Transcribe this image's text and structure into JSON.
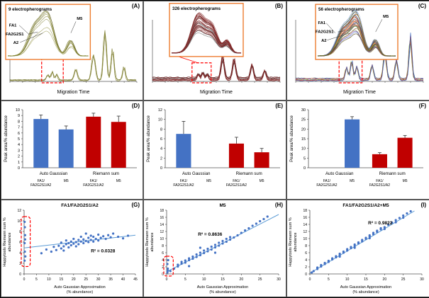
{
  "figure": {
    "background": "#ffffff",
    "accent_orange": "#ED7D31",
    "accent_red": "#FF0000",
    "bar_blue": "#4472C4",
    "bar_red": "#C00000",
    "trend_blue": "#5B9BD5"
  },
  "chart_data": [
    {
      "panel": "(A)",
      "type": "line",
      "subtype": "electropherogram",
      "title": "9 electropherograms",
      "xlabel": "Migration Time",
      "n_traces": 9,
      "n_main": 3,
      "seed": 7,
      "colors": [
        "#7f7f33",
        "#8f8f40",
        "#6b6b26",
        "#9a9a52",
        "#75752d",
        "#5e5e20",
        "#a3a35e",
        "#82823a",
        "#8a8a30"
      ],
      "main_peaks": [
        {
          "c": 0.3,
          "h": 0.1,
          "w": 0.01
        },
        {
          "c": 0.335,
          "h": 0.16,
          "w": 0.009
        },
        {
          "c": 0.37,
          "h": 0.11,
          "w": 0.009
        },
        {
          "c": 0.52,
          "h": 0.2,
          "w": 0.012
        },
        {
          "c": 0.66,
          "h": 0.45,
          "w": 0.014
        },
        {
          "c": 0.75,
          "h": 0.88,
          "w": 0.012
        },
        {
          "c": 0.81,
          "h": 0.55,
          "w": 0.011
        },
        {
          "c": 0.9,
          "h": 0.24,
          "w": 0.01
        }
      ],
      "inset_peaks": [
        {
          "c": 0.34,
          "h": 0.72,
          "w": 0.085
        },
        {
          "c": 0.5,
          "h": 0.95,
          "w": 0.075
        },
        {
          "c": 0.78,
          "h": 0.38,
          "w": 0.045
        }
      ],
      "inset_pos": {
        "x": 0.03,
        "y": 0.03,
        "w": 0.6,
        "h": 0.56
      },
      "highlight": {
        "x0": 0.25,
        "x1": 0.42,
        "h": 0.28
      },
      "connector": 0,
      "annotations": [
        {
          "text": "FA1",
          "x": 0.04,
          "y": 0.4,
          "leader": [
            0.16,
            0.38,
            0.28,
            0.55
          ]
        },
        {
          "text": "FA2G2S1",
          "x": 0.0,
          "y": 0.56,
          "leader": [
            0.27,
            0.54,
            0.38,
            0.5
          ]
        },
        {
          "text": "A2",
          "x": 0.09,
          "y": 0.72,
          "leader": [
            0.17,
            0.69,
            0.44,
            0.52
          ]
        },
        {
          "text": "M5",
          "x": 0.84,
          "y": 0.28,
          "leader": [
            0.83,
            0.31,
            0.77,
            0.52
          ]
        }
      ]
    },
    {
      "panel": "(B)",
      "type": "line",
      "subtype": "electropherogram",
      "title": "326 electropherograms",
      "xlabel": "Migration Time",
      "n_traces": 326,
      "n_main": 8,
      "seed": 13,
      "colors": [
        "#7b2222",
        "#8d2e2e",
        "#652020",
        "#9a3d3d",
        "#712525",
        "#565656",
        "#843030",
        "#5f1d1d",
        "#952f2f",
        "#6e6e6e"
      ],
      "main_peaks": [
        {
          "c": 0.36,
          "h": 0.1,
          "w": 0.009
        },
        {
          "c": 0.395,
          "h": 0.14,
          "w": 0.009
        },
        {
          "c": 0.43,
          "h": 0.1,
          "w": 0.009
        },
        {
          "c": 0.55,
          "h": 0.45,
          "w": 0.012
        },
        {
          "c": 0.64,
          "h": 0.4,
          "w": 0.012
        },
        {
          "c": 0.78,
          "h": 0.3,
          "w": 0.011
        },
        {
          "c": 0.88,
          "h": 0.18,
          "w": 0.01
        }
      ],
      "inset_peaks": [
        {
          "c": 0.38,
          "h": 0.88,
          "w": 0.095
        },
        {
          "c": 0.58,
          "h": 0.6,
          "w": 0.085
        },
        {
          "c": 0.8,
          "h": 0.28,
          "w": 0.05
        }
      ],
      "inset_pos": {
        "x": 0.18,
        "y": 0.02,
        "w": 0.52,
        "h": 0.54
      },
      "highlight": {
        "x0": 0.31,
        "x1": 0.46,
        "h": 0.22
      },
      "connector": 1,
      "annotations": []
    },
    {
      "panel": "(C)",
      "type": "line",
      "subtype": "electropherogram",
      "title": "56 electropherograms",
      "xlabel": "Migration Time",
      "n_traces": 56,
      "n_main": 6,
      "seed": 29,
      "colors": [
        "#4472C4",
        "#C00000",
        "#70AD47",
        "#7030A0",
        "#ED7D31",
        "#255E91",
        "#9E480E",
        "#636363",
        "#997300",
        "#43682B",
        "#698ED0",
        "#F1975A"
      ],
      "main_peaks": [
        {
          "c": 0.4,
          "h": 0.24,
          "w": 0.01
        },
        {
          "c": 0.44,
          "h": 0.36,
          "w": 0.01
        },
        {
          "c": 0.48,
          "h": 0.26,
          "w": 0.01
        },
        {
          "c": 0.6,
          "h": 0.28,
          "w": 0.011
        },
        {
          "c": 0.7,
          "h": 0.52,
          "w": 0.012
        },
        {
          "c": 0.79,
          "h": 0.38,
          "w": 0.011
        },
        {
          "c": 0.9,
          "h": 0.82,
          "w": 0.011
        }
      ],
      "inset_peaks": [
        {
          "c": 0.33,
          "h": 0.62,
          "w": 0.085
        },
        {
          "c": 0.5,
          "h": 0.9,
          "w": 0.075
        },
        {
          "c": 0.74,
          "h": 0.36,
          "w": 0.045
        }
      ],
      "inset_pos": {
        "x": 0.2,
        "y": 0.03,
        "w": 0.58,
        "h": 0.56
      },
      "highlight": {
        "x0": 0.34,
        "x1": 0.52,
        "h": 0.3
      },
      "connector": 2,
      "annotations": [
        {
          "text": "FA1",
          "x": 0.03,
          "y": 0.36,
          "leader": [
            0.13,
            0.34,
            0.24,
            0.52
          ]
        },
        {
          "text": "FA2G2S1",
          "x": 0.0,
          "y": 0.52,
          "leader": [
            0.27,
            0.5,
            0.36,
            0.48
          ]
        },
        {
          "text": "A2",
          "x": 0.07,
          "y": 0.68,
          "leader": [
            0.14,
            0.65,
            0.42,
            0.52
          ]
        },
        {
          "text": "M5",
          "x": 0.82,
          "y": 0.24,
          "leader": [
            0.81,
            0.27,
            0.73,
            0.5
          ]
        }
      ]
    },
    {
      "panel": "(D)",
      "type": "bar",
      "ylabel": "Peak area/% abundance",
      "ylim": [
        0,
        10
      ],
      "ytick_step": 1,
      "groups": [
        "Auto Gaussian",
        "Riemann sum"
      ],
      "categories": [
        [
          "FA1/",
          "FA2G2S1/A2"
        ],
        [
          "M5"
        ],
        [
          "FA1/",
          "FA2G2S1/A2"
        ],
        [
          "M5"
        ]
      ],
      "values": [
        8.4,
        6.6,
        8.8,
        7.9
      ],
      "errors": [
        0.7,
        0.6,
        0.6,
        1.0
      ],
      "bar_colors": [
        "#4472C4",
        "#4472C4",
        "#C00000",
        "#C00000"
      ]
    },
    {
      "panel": "(E)",
      "type": "bar",
      "ylabel": "Peak area/% abundance",
      "ylim": [
        0,
        12
      ],
      "ytick_step": 2,
      "groups": [
        "Auto Gaussian",
        "Riemann sum"
      ],
      "categories": [
        [
          "FA1/",
          "FA2G2S1/A2"
        ],
        [
          "M5"
        ],
        [
          "FA1/",
          "FA2G2S1/A2"
        ],
        [
          "M5"
        ]
      ],
      "values": [
        7.0,
        0,
        5.0,
        3.2
      ],
      "errors": [
        2.6,
        0,
        1.3,
        0.8
      ],
      "bar_colors": [
        "#4472C4",
        "#4472C4",
        "#C00000",
        "#C00000"
      ]
    },
    {
      "panel": "(F)",
      "type": "bar",
      "ylabel": "Peak area/% abundance",
      "ylim": [
        0,
        30
      ],
      "ytick_step": 5,
      "groups": [
        "Auto Gaussian",
        "Riemann sum"
      ],
      "categories": [
        [
          "FA1/",
          "FA2G2S1/A2"
        ],
        [
          "M5"
        ],
        [
          "FA1/",
          "FA2G2S1/A2"
        ],
        [
          "M5"
        ]
      ],
      "values": [
        0,
        25,
        7,
        15.5
      ],
      "errors": [
        0,
        1.4,
        0.8,
        1.2
      ],
      "bar_colors": [
        "#4472C4",
        "#4472C4",
        "#C00000",
        "#C00000"
      ]
    },
    {
      "panel": "(G)",
      "type": "scatter",
      "title": "FA1/FA2G2S1/A2",
      "r2": "R² = 0.0328",
      "r2_pos": [
        0.6,
        0.66
      ],
      "xlabel_lines": [
        "Auto Gaussian Approximation",
        "(% abundance)"
      ],
      "ylabel_lines": [
        "Happytools Riemann sum %",
        "abundance"
      ],
      "xlim": [
        0,
        45
      ],
      "xtick_step": 5,
      "ylim": [
        0,
        12
      ],
      "ytick_step": 2,
      "trend": [
        [
          0,
          4.9
        ],
        [
          45,
          7.3
        ]
      ],
      "highlight_box": {
        "x0": 0,
        "x1": 1.6,
        "y0": 1.8,
        "y1": 10.4
      },
      "points": [
        [
          0.2,
          2.5
        ],
        [
          0.3,
          4.2
        ],
        [
          0.2,
          5.8
        ],
        [
          0.4,
          7.3
        ],
        [
          0.3,
          8.8
        ],
        [
          0.2,
          9.8
        ],
        [
          0.5,
          3.3
        ],
        [
          0.4,
          6.5
        ],
        [
          7,
          3.9
        ],
        [
          9,
          4.6
        ],
        [
          11,
          4.2
        ],
        [
          12,
          5.1
        ],
        [
          13,
          4.5
        ],
        [
          14,
          5.3
        ],
        [
          15,
          4.8
        ],
        [
          15,
          5.9
        ],
        [
          16,
          5.2
        ],
        [
          16,
          4.4
        ],
        [
          17,
          5.6
        ],
        [
          17,
          6.3
        ],
        [
          18,
          5.0
        ],
        [
          18,
          5.8
        ],
        [
          19,
          5.4
        ],
        [
          19,
          6.1
        ],
        [
          20,
          5.7
        ],
        [
          20,
          6.6
        ],
        [
          21,
          5.2
        ],
        [
          21,
          6.0
        ],
        [
          22,
          6.4
        ],
        [
          22,
          5.6
        ],
        [
          23,
          6.1
        ],
        [
          23,
          7.0
        ],
        [
          24,
          5.8
        ],
        [
          24,
          6.5
        ],
        [
          25,
          6.2
        ],
        [
          25,
          7.6
        ],
        [
          26,
          6.0
        ],
        [
          26,
          6.8
        ],
        [
          27,
          6.4
        ],
        [
          27,
          7.2
        ],
        [
          28,
          6.1
        ],
        [
          28,
          7.0
        ],
        [
          29,
          6.6
        ],
        [
          30,
          6.3
        ],
        [
          30,
          7.4
        ],
        [
          31,
          6.8
        ],
        [
          32,
          7.1
        ],
        [
          33,
          6.6
        ],
        [
          34,
          7.3
        ],
        [
          35,
          6.9
        ],
        [
          36,
          7.6
        ],
        [
          38,
          7.0
        ],
        [
          40,
          6.7
        ],
        [
          42,
          7.2
        ]
      ]
    },
    {
      "panel": "(H)",
      "type": "scatter",
      "title": "M5",
      "r2": "R² = 0.8636",
      "r2_pos": [
        0.28,
        0.4
      ],
      "xlabel_lines": [
        "Auto Gaussian Approximation",
        "(% abundance)"
      ],
      "ylabel_lines": [
        "Happytools Riemann sum %",
        "abundance"
      ],
      "xlim": [
        0,
        30
      ],
      "xtick_step": 5,
      "ylim": [
        0,
        18
      ],
      "ytick_step": 2,
      "trend": [
        [
          0,
          0.6
        ],
        [
          30,
          16.8
        ]
      ],
      "highlight_box": {
        "x0": 0,
        "x1": 1.2,
        "y0": 0,
        "y1": 4.4
      },
      "points": [
        [
          0.2,
          0.4
        ],
        [
          0.3,
          1.5
        ],
        [
          0.2,
          2.8
        ],
        [
          0.4,
          3.9
        ],
        [
          0.3,
          0.9
        ],
        [
          1,
          0.8
        ],
        [
          2,
          1.5
        ],
        [
          3,
          2.1
        ],
        [
          3,
          2.6
        ],
        [
          4,
          2.9
        ],
        [
          4,
          3.4
        ],
        [
          5,
          3.2
        ],
        [
          5,
          3.8
        ],
        [
          6,
          3.9
        ],
        [
          6,
          4.4
        ],
        [
          6,
          2.2
        ],
        [
          7,
          4.3
        ],
        [
          7,
          4.9
        ],
        [
          8,
          4.8
        ],
        [
          8,
          5.5
        ],
        [
          9,
          5.3
        ],
        [
          9,
          6.0
        ],
        [
          9,
          7.4
        ],
        [
          10,
          5.9
        ],
        [
          10,
          6.6
        ],
        [
          11,
          6.4
        ],
        [
          11,
          7.1
        ],
        [
          12,
          6.9
        ],
        [
          12,
          7.7
        ],
        [
          13,
          7.5
        ],
        [
          13,
          8.2
        ],
        [
          13,
          6.0
        ],
        [
          14,
          8.0
        ],
        [
          14,
          8.8
        ],
        [
          15,
          8.6
        ],
        [
          15,
          9.3
        ],
        [
          16,
          9.1
        ],
        [
          16,
          9.9
        ],
        [
          17,
          9.7
        ],
        [
          17,
          10.4
        ],
        [
          18,
          10.3
        ],
        [
          19,
          10.9
        ],
        [
          20,
          11.6
        ],
        [
          21,
          12.3
        ],
        [
          22,
          12.9
        ],
        [
          23,
          13.6
        ],
        [
          24,
          14.2
        ],
        [
          25,
          14.9
        ],
        [
          26,
          15.5
        ],
        [
          27,
          16.2
        ]
      ]
    },
    {
      "panel": "(I)",
      "type": "scatter",
      "title": "FA1/FA2G2S1/A2+M5",
      "r2": "R² = 0.9822",
      "r2_pos": [
        0.52,
        0.22
      ],
      "xlabel_lines": [
        "Auto Gaussian Approximation",
        "(% abundance)"
      ],
      "ylabel_lines": [
        "Happytools Riemann sum %",
        "abundance"
      ],
      "xlim": [
        0,
        30
      ],
      "xtick_step": 5,
      "ylim": [
        0,
        18
      ],
      "ytick_step": 2,
      "trend": [
        [
          0,
          0.2
        ],
        [
          28,
          17.8
        ]
      ],
      "highlight_box": null,
      "points": [
        [
          0.5,
          0.4
        ],
        [
          1,
          0.8
        ],
        [
          2,
          1.4
        ],
        [
          2,
          1.8
        ],
        [
          3,
          2.1
        ],
        [
          3,
          2.5
        ],
        [
          4,
          2.8
        ],
        [
          4,
          3.1
        ],
        [
          5,
          3.4
        ],
        [
          5,
          3.7
        ],
        [
          6,
          4.1
        ],
        [
          6,
          4.4
        ],
        [
          7,
          4.7
        ],
        [
          7,
          5.0
        ],
        [
          8,
          5.3
        ],
        [
          8,
          5.7
        ],
        [
          8,
          4.9
        ],
        [
          9,
          6.0
        ],
        [
          9,
          6.3
        ],
        [
          10,
          6.6
        ],
        [
          10,
          7.0
        ],
        [
          11,
          7.3
        ],
        [
          11,
          7.6
        ],
        [
          12,
          7.9
        ],
        [
          12,
          8.3
        ],
        [
          12,
          7.4
        ],
        [
          13,
          8.6
        ],
        [
          13,
          8.9
        ],
        [
          14,
          9.2
        ],
        [
          14,
          9.6
        ],
        [
          15,
          9.9
        ],
        [
          15,
          10.2
        ],
        [
          16,
          10.6
        ],
        [
          16,
          10.9
        ],
        [
          16,
          10.1
        ],
        [
          17,
          11.2
        ],
        [
          17,
          11.6
        ],
        [
          18,
          11.9
        ],
        [
          18,
          12.2
        ],
        [
          19,
          12.6
        ],
        [
          19,
          12.9
        ],
        [
          20,
          13.2
        ],
        [
          20,
          12.7
        ],
        [
          21,
          13.9
        ],
        [
          22,
          14.5
        ],
        [
          23,
          15.2
        ],
        [
          23,
          14.6
        ],
        [
          24,
          15.8
        ],
        [
          25,
          16.5
        ],
        [
          25,
          15.9
        ],
        [
          26,
          17.1
        ],
        [
          27,
          17.7
        ]
      ]
    }
  ]
}
